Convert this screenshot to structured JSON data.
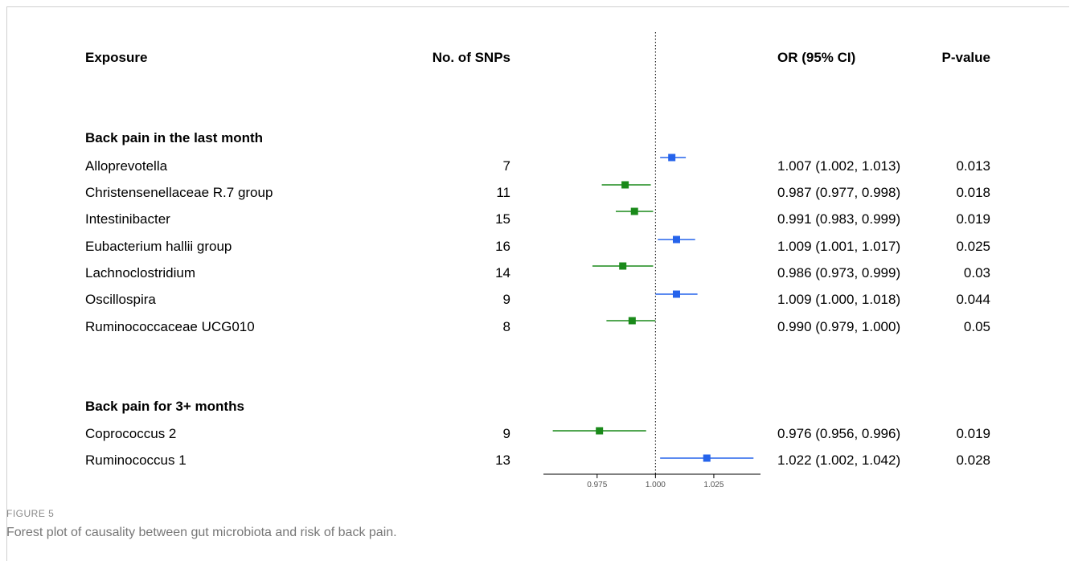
{
  "headers": {
    "exposure": "Exposure",
    "snps": "No. of SNPs",
    "or": "OR (95% CI)",
    "pvalue": "P-value"
  },
  "groups": [
    {
      "title": "Back pain in the last month",
      "rows": [
        {
          "name": "Alloprevotella",
          "snps": "7",
          "or_text": "1.007 (1.002, 1.013)",
          "p": "0.013"
        },
        {
          "name": "Christensenellaceae R.7 group",
          "snps": "11",
          "or_text": "0.987 (0.977, 0.998)",
          "p": "0.018"
        },
        {
          "name": "Intestinibacter",
          "snps": "15",
          "or_text": "0.991 (0.983, 0.999)",
          "p": "0.019"
        },
        {
          "name": "Eubacterium hallii group",
          "snps": "16",
          "or_text": "1.009 (1.001, 1.017)",
          "p": "0.025"
        },
        {
          "name": "Lachnoclostridium",
          "snps": "14",
          "or_text": "0.986 (0.973, 0.999)",
          "p": "0.03"
        },
        {
          "name": "Oscillospira",
          "snps": "9",
          "or_text": "1.009 (1.000, 1.018)",
          "p": "0.044"
        },
        {
          "name": "Ruminococcaceae UCG010",
          "snps": "8",
          "or_text": "0.990 (0.979, 1.000)",
          "p": "0.05"
        }
      ]
    },
    {
      "title": "Back pain for 3+ months",
      "rows": [
        {
          "name": "Coprococcus 2",
          "snps": "9",
          "or_text": "0.976 (0.956, 0.996)",
          "p": "0.019"
        },
        {
          "name": "Ruminococcus 1",
          "snps": "13",
          "or_text": "1.022 (1.002, 1.042)",
          "p": "0.028"
        }
      ]
    }
  ],
  "chart_data": {
    "type": "scatter",
    "subtype": "forest",
    "reference_line": 1.0,
    "x_ticks": [
      "0.975",
      "1.000",
      "1.025"
    ],
    "xlim": [
      0.952,
      1.045
    ],
    "colors": {
      "protective": "#1a8a1a",
      "risk": "#2563eb"
    },
    "series": [
      {
        "label": "Alloprevotella",
        "or": 1.007,
        "lo": 1.002,
        "hi": 1.013
      },
      {
        "label": "Christensenellaceae R.7 group",
        "or": 0.987,
        "lo": 0.977,
        "hi": 0.998
      },
      {
        "label": "Intestinibacter",
        "or": 0.991,
        "lo": 0.983,
        "hi": 0.999
      },
      {
        "label": "Eubacterium hallii group",
        "or": 1.009,
        "lo": 1.001,
        "hi": 1.017
      },
      {
        "label": "Lachnoclostridium",
        "or": 0.986,
        "lo": 0.973,
        "hi": 0.999
      },
      {
        "label": "Oscillospira",
        "or": 1.009,
        "lo": 1.0,
        "hi": 1.018
      },
      {
        "label": "Ruminococcaceae UCG010",
        "or": 0.99,
        "lo": 0.979,
        "hi": 1.0
      },
      {
        "label": "Coprococcus 2",
        "or": 0.976,
        "lo": 0.956,
        "hi": 0.996
      },
      {
        "label": "Ruminococcus 1",
        "or": 1.022,
        "lo": 1.002,
        "hi": 1.042
      }
    ]
  },
  "caption": {
    "label": "FIGURE 5",
    "text": "Forest plot of causality between gut microbiota and risk of back pain."
  }
}
